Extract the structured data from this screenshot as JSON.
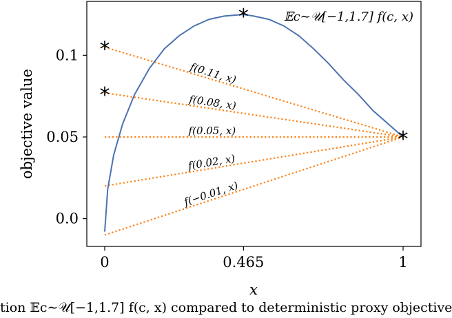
{
  "chart_data": {
    "type": "line",
    "xlabel": "x",
    "ylabel": "objective value",
    "xlim": [
      -0.06,
      1.06
    ],
    "ylim": [
      -0.017,
      0.133
    ],
    "xticks": [
      {
        "value": 0,
        "label": "0"
      },
      {
        "value": 0.465,
        "label": "0.465"
      },
      {
        "value": 1,
        "label": "1"
      }
    ],
    "yticks": [
      {
        "value": 0.0,
        "label": "0.0"
      },
      {
        "value": 0.05,
        "label": "0.05"
      },
      {
        "value": 0.1,
        "label": "0.1"
      }
    ],
    "grid": false,
    "expected": {
      "label": "𝔼c∼𝒰[−1,1.7] f(c, x)",
      "color": "#4c72b0",
      "x": [
        0,
        0.01,
        0.03,
        0.06,
        0.1,
        0.15,
        0.2,
        0.25,
        0.3,
        0.35,
        0.4,
        0.465,
        0.5,
        0.55,
        0.6,
        0.65,
        0.7,
        0.75,
        0.8,
        0.85,
        0.9,
        0.95,
        1.0
      ],
      "y": [
        -0.008,
        0.018,
        0.039,
        0.058,
        0.076,
        0.092,
        0.104,
        0.112,
        0.118,
        0.122,
        0.124,
        0.125,
        0.124,
        0.122,
        0.118,
        0.112,
        0.104,
        0.095,
        0.085,
        0.076,
        0.066,
        0.058,
        0.05
      ]
    },
    "proxies": {
      "color": "#ff7f0e",
      "series": [
        {
          "name": "f(0.11, x)",
          "y0": 0.105,
          "y1": 0.05
        },
        {
          "name": "f(0.08, x)",
          "y0": 0.077,
          "y1": 0.05
        },
        {
          "name": "f(0.05, x)",
          "y0": 0.05,
          "y1": 0.05
        },
        {
          "name": "f(0.02, x)",
          "y0": 0.02,
          "y1": 0.05
        },
        {
          "name": "f(−0.01, x)",
          "y0": -0.01,
          "y1": 0.05
        }
      ]
    },
    "markers": [
      {
        "x": 0,
        "y": 0.105
      },
      {
        "x": 0,
        "y": 0.077
      },
      {
        "x": 0.465,
        "y": 0.125
      },
      {
        "x": 1,
        "y": 0.05
      }
    ]
  },
  "caption": "tion 𝔼c∼𝒰[−1,1.7] f(c, x) compared to deterministic proxy objective"
}
